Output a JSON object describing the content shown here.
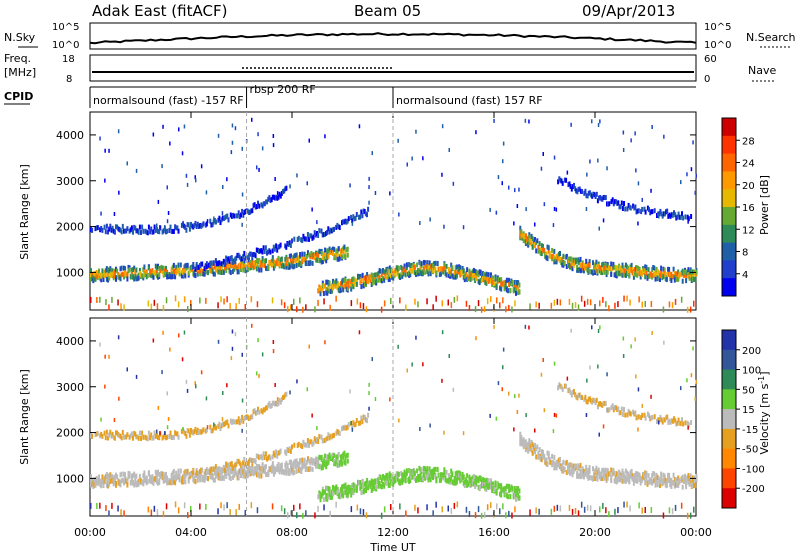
{
  "header": {
    "station": "Adak East (fitACF)",
    "beam": "Beam 05",
    "date": "09/Apr/2013"
  },
  "strip_labels": {
    "nsky": "N.Sky",
    "nsearch": "N.Search",
    "freq_line1": "Freq.",
    "freq_line2": "[MHz]",
    "nave": "Nave",
    "cpid": "CPID",
    "nsky_ticks": [
      "10^5",
      "10^0"
    ],
    "nsearch_ticks": [
      "10^5",
      "10^0"
    ],
    "freq_ticks": [
      "18",
      "8"
    ],
    "nave_ticks": [
      "60",
      "0"
    ]
  },
  "cpid_segments": [
    {
      "label": "normalsound (fast) -157 RF",
      "start_hour": 0,
      "end_hour": 6.2
    },
    {
      "label": "rbsp 200 RF",
      "start_hour": 6.2,
      "end_hour": 12.0
    },
    {
      "label": "normalsound (fast) 157 RF",
      "start_hour": 12.0,
      "end_hour": 24.0
    }
  ],
  "power_colorbar": {
    "title": "Power [dB]",
    "ticks": [
      "28",
      "24",
      "20",
      "16",
      "12",
      "8",
      "4"
    ],
    "colors": [
      "#cc0000",
      "#ff3300",
      "#ff6600",
      "#ff9900",
      "#e6b800",
      "#66aa33",
      "#2e8b57",
      "#1f5fa8",
      "#1f3fcc",
      "#0000ee"
    ]
  },
  "velocity_colorbar": {
    "title": "Velocity [m s",
    "title_sup": "-1",
    "title_end": "]",
    "ticks": [
      "200",
      "100",
      "50",
      "15",
      "-15",
      "-50",
      "-100",
      "-200"
    ],
    "colors": [
      "#2233aa",
      "#335599",
      "#2e8b57",
      "#66cc33",
      "#bbbbbb",
      "#e6a020",
      "#ff8800",
      "#ff4400",
      "#dd0000"
    ]
  },
  "chart_data": [
    {
      "type": "heatmap",
      "name_panel": "power",
      "ylabel": "Slant Range [km]",
      "ylim": [
        180,
        4500
      ],
      "yticks": [
        "4000",
        "3000",
        "2000",
        "1000"
      ],
      "xlim": [
        0,
        24
      ],
      "bands": [
        {
          "x": [
            0,
            1,
            2,
            3,
            4,
            5,
            6,
            7,
            8,
            9,
            10.2
          ],
          "y": [
            1000,
            1020,
            1050,
            1080,
            1100,
            1150,
            1200,
            1250,
            1300,
            1400,
            1500
          ],
          "level": "high"
        },
        {
          "x": [
            0,
            1,
            2,
            3,
            4,
            5,
            6,
            7,
            7.8
          ],
          "y": [
            2000,
            2000,
            1980,
            1990,
            2050,
            2150,
            2350,
            2600,
            2850
          ],
          "level": "low"
        },
        {
          "x": [
            4,
            5,
            6,
            7,
            8,
            9,
            10,
            11
          ],
          "y": [
            1150,
            1250,
            1400,
            1550,
            1700,
            1900,
            2100,
            2400
          ],
          "level": "low"
        },
        {
          "x": [
            9,
            10,
            11,
            12,
            13,
            14,
            15,
            16,
            17
          ],
          "y": [
            700,
            780,
            900,
            1050,
            1150,
            1120,
            1000,
            850,
            700
          ],
          "level": "high"
        },
        {
          "x": [
            17,
            18,
            19,
            20,
            21,
            22,
            23,
            24
          ],
          "y": [
            1900,
            1500,
            1250,
            1150,
            1100,
            1050,
            1000,
            980
          ],
          "level": "high"
        },
        {
          "x": [
            18.5,
            19.5,
            20.5,
            21.5,
            22.5,
            23.8
          ],
          "y": [
            3100,
            2800,
            2600,
            2450,
            2350,
            2250
          ],
          "level": "low"
        }
      ],
      "colorbar": "Power [dB]"
    },
    {
      "type": "heatmap",
      "name_panel": "velocity",
      "ylabel": "Slant Range [km]",
      "ylim": [
        180,
        4500
      ],
      "yticks": [
        "4000",
        "3000",
        "2000",
        "1000"
      ],
      "xlim": [
        0,
        24
      ],
      "xlabel": "Time UT",
      "xticks": [
        "00:00",
        "04:00",
        "08:00",
        "12:00",
        "16:00",
        "20:00",
        "00:00"
      ],
      "colorbar": "Velocity [m s-1]"
    }
  ]
}
